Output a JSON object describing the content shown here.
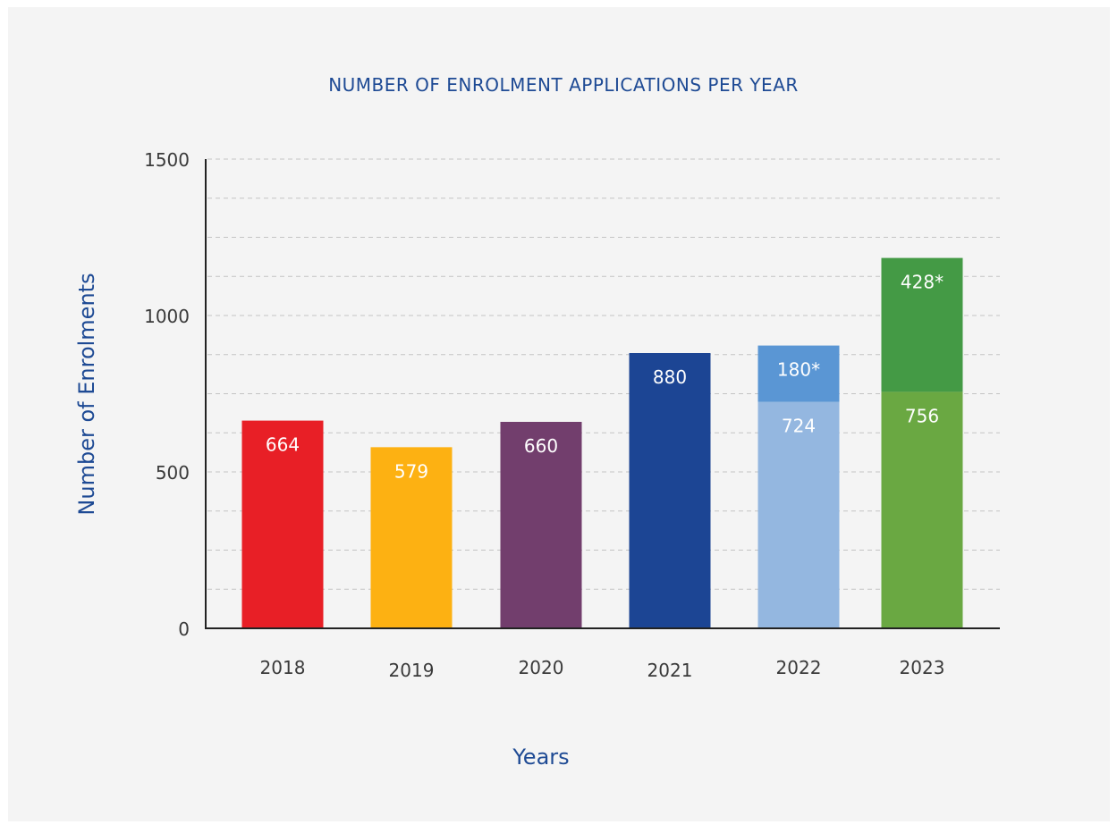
{
  "chart_data": {
    "type": "bar",
    "title": "NUMBER OF ENROLMENT APPLICATIONS PER YEAR",
    "xlabel": "Years",
    "ylabel": "Number of Enrolments",
    "categories": [
      "2018",
      "2019",
      "2020",
      "2021",
      "2022",
      "2023"
    ],
    "ylim": [
      0,
      1500
    ],
    "y_ticks": [
      0,
      500,
      1000,
      1500
    ],
    "grid": true,
    "stacked": true,
    "bars": [
      {
        "category": "2018",
        "segments": [
          {
            "value": 664,
            "label": "664",
            "color": "#e81f26"
          }
        ]
      },
      {
        "category": "2019",
        "segments": [
          {
            "value": 579,
            "label": "579",
            "color": "#fdb112"
          }
        ]
      },
      {
        "category": "2020",
        "segments": [
          {
            "value": 660,
            "label": "660",
            "color": "#723e6d"
          }
        ]
      },
      {
        "category": "2021",
        "segments": [
          {
            "value": 880,
            "label": "880",
            "color": "#1c4594"
          }
        ]
      },
      {
        "category": "2022",
        "segments": [
          {
            "value": 724,
            "label": "724",
            "color": "#94b7e0"
          },
          {
            "value": 180,
            "label": "180*",
            "color": "#5a96d4"
          }
        ]
      },
      {
        "category": "2023",
        "segments": [
          {
            "value": 756,
            "label": "756",
            "color": "#6aa842"
          },
          {
            "value": 428,
            "label": "428*",
            "color": "#449a45"
          }
        ]
      }
    ],
    "colors": {
      "background": "#f4f4f4",
      "title": "#1e4a94",
      "axis_label": "#1e4a94",
      "axis_line": "#222222",
      "grid": "#c4c4c4"
    }
  }
}
